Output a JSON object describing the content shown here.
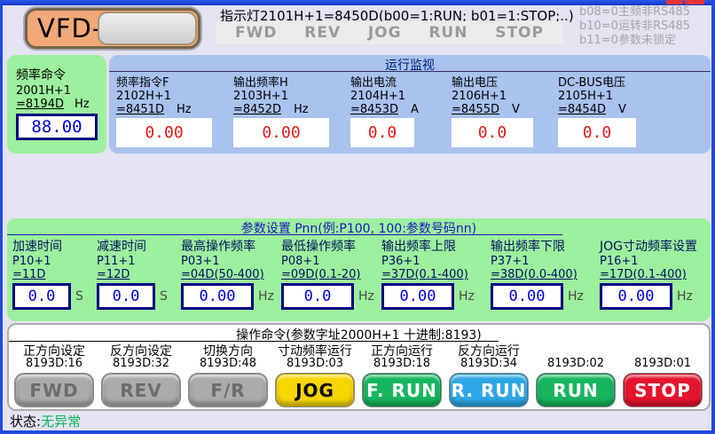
{
  "window": {
    "logo": "VFD-M",
    "status_label": "状态:",
    "status_value": "无异常"
  },
  "header": {
    "indicator_title": "指示灯2101H+1=8450D(b00=1:RUN; b01=1:STOP;..)",
    "indicators": [
      "FWD",
      "REV",
      "JOG",
      "RUN",
      "STOP"
    ],
    "comm_flags": [
      "b08=0主频非RS485",
      "b10=0运转非RS485",
      "b11=0参数未锁定"
    ]
  },
  "freq_command": {
    "label": "频率命令",
    "address": "2001H+1",
    "decimal": "=8194D",
    "unit": "Hz",
    "value": "88.00"
  },
  "monitor": {
    "title": "运行监视",
    "items": [
      {
        "label": "频率指令F",
        "address": "2102H+1",
        "decimal": "=8451D",
        "unit": "Hz",
        "value": "0.00"
      },
      {
        "label": "输出频率H",
        "address": "2103H+1",
        "decimal": "=8452D",
        "unit": "Hz",
        "value": "0.00"
      },
      {
        "label": "输出电流",
        "address": "2104H+1",
        "decimal": "=8453D",
        "unit": "A",
        "value": "0.0"
      },
      {
        "label": "输出电压",
        "address": "2106H+1",
        "decimal": "=8455D",
        "unit": "V",
        "value": "0.0"
      },
      {
        "label": "DC-BUS电压",
        "address": "2105H+1",
        "decimal": "=8454D",
        "unit": "V",
        "value": "0.0"
      }
    ]
  },
  "params": {
    "title": "参数设置 Pnn(例:P100, 100:参数号码nn)",
    "items": [
      {
        "label": "加速时间",
        "address": "P10+1",
        "decimal": "=11D",
        "value": "0.0",
        "unit": "S"
      },
      {
        "label": "减速时间",
        "address": "P11+1",
        "decimal": "=12D",
        "value": "0.0",
        "unit": "S"
      },
      {
        "label": "最高操作频率",
        "address": "P03+1",
        "decimal": "=04D(50-400)",
        "value": "0.00",
        "unit": "Hz"
      },
      {
        "label": "最低操作频率",
        "address": "P08+1",
        "decimal": "=09D(0.1-20)",
        "value": "0.0",
        "unit": "Hz"
      },
      {
        "label": "输出频率上限",
        "address": "P36+1",
        "decimal": "=37D(0.1-400)",
        "value": "0.00",
        "unit": "Hz"
      },
      {
        "label": "输出频率下限",
        "address": "P37+1",
        "decimal": "=38D(0.0-400)",
        "value": "0.00",
        "unit": "Hz"
      },
      {
        "label": "JOG寸动频率设置",
        "address": "P16+1",
        "decimal": "=17D(0.1-400)",
        "value": "0.00",
        "unit": "Hz"
      }
    ]
  },
  "commands": {
    "title": "操作命令(参数字址2000H+1  十进制:8193)",
    "buttons": [
      {
        "label": "正方向设定",
        "code": "8193D:16",
        "text": "FWD",
        "style": "gray"
      },
      {
        "label": "反方向设定",
        "code": "8193D:32",
        "text": "REV",
        "style": "gray"
      },
      {
        "label": "切换方向",
        "code": "8193D:48",
        "text": "F/R",
        "style": "gray"
      },
      {
        "label": "寸动频率运行",
        "code": "8193D:03",
        "text": "JOG",
        "style": "yellow"
      },
      {
        "label": "正方向运行",
        "code": "8193D:18",
        "text": "F. RUN",
        "style": "green"
      },
      {
        "label": "反方向运行",
        "code": "8193D:34",
        "text": "R. RUN",
        "style": "blue"
      },
      {
        "label": "",
        "code": "8193D:02",
        "text": "RUN",
        "style": "green"
      },
      {
        "label": "",
        "code": "8193D:01",
        "text": "STOP",
        "style": "red"
      }
    ]
  },
  "colors": {
    "panel_green": "#9DF09D",
    "panel_blue": "#A9C2EE",
    "window_frame_blue": "#1E4AE0",
    "value_red": "#E01818",
    "value_blue": "#0000D8",
    "status_green": "#00B856",
    "btn_gray": "#ABABAB",
    "btn_yellow": "#F7D600",
    "btn_green": "#17B55F",
    "btn_blue": "#2EA7E6",
    "btn_red": "#E6142E",
    "logo_orange": "#F2A878"
  }
}
